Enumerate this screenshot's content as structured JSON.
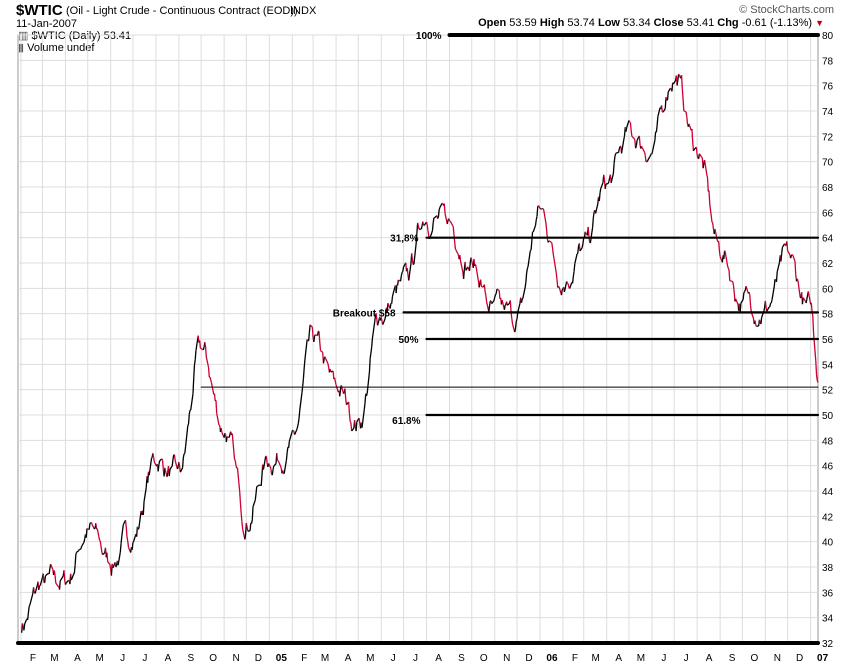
{
  "header": {
    "symbol": "$WTIC",
    "description": "(Oil - Light Crude - Continuous Contract (EOD))",
    "index": "INDX",
    "date": "11-Jan-2007",
    "brand": "© StockCharts.com",
    "ohlc": {
      "open_label": "Open",
      "open": "53.59",
      "high_label": "High",
      "high": "53.74",
      "low_label": "Low",
      "low": "53.34",
      "close_label": "Close",
      "close": "53.41",
      "chg_label": "Chg",
      "chg": "-0.61 (-1.13%)"
    },
    "legend_line1": "$WTIC (Daily) 53.41",
    "legend_line2": "Volume undef"
  },
  "colors": {
    "up": "#000000",
    "down": "#cc0033",
    "grid": "#dddddd",
    "level": "#000000"
  },
  "chart_data": {
    "type": "line",
    "title": "$WTIC (Oil - Light Crude - Continuous Contract (EOD)) INDX",
    "series": [
      {
        "name": "$WTIC (Daily) 53.41",
        "x": [
          "2004-02-01",
          "2004-03-01",
          "2004-04-01",
          "2004-05-01",
          "2004-06-01",
          "2004-07-01",
          "2004-08-01",
          "2004-09-01",
          "2004-10-01",
          "2004-11-01",
          "2004-12-01",
          "2005-01-01",
          "2005-02-01",
          "2005-03-01",
          "2005-04-01",
          "2005-05-01",
          "2005-06-01",
          "2005-07-01",
          "2005-08-01",
          "2005-09-01",
          "2005-10-01",
          "2005-11-01",
          "2005-12-01",
          "2006-01-01",
          "2006-02-01",
          "2006-03-01",
          "2006-04-01",
          "2006-05-01",
          "2006-06-01",
          "2006-07-01",
          "2006-08-01",
          "2006-09-01",
          "2006-10-01",
          "2006-11-01",
          "2006-12-01",
          "2007-01-01",
          "2007-01-11"
        ],
        "values": [
          33.5,
          36.5,
          36.8,
          41,
          38.5,
          40.5,
          46.5,
          45,
          55,
          49,
          42,
          46.5,
          47.5,
          55.5,
          52,
          49.5,
          58,
          60,
          66,
          65,
          62,
          58,
          57.5,
          66,
          61,
          63,
          68,
          72,
          71,
          77,
          71,
          63,
          59,
          58.5,
          62,
          58,
          53.41
        ]
      }
    ],
    "xlabel": "",
    "ylabel": "",
    "ylim": [
      32,
      80
    ],
    "yticks": [
      32,
      34,
      36,
      38,
      40,
      42,
      44,
      46,
      48,
      50,
      52,
      54,
      56,
      58,
      60,
      62,
      64,
      66,
      68,
      70,
      72,
      74,
      76,
      78,
      80
    ],
    "x_tick_labels": [
      {
        "x": "2004-02-01",
        "label": "F"
      },
      {
        "x": "2004-03-01",
        "label": "M"
      },
      {
        "x": "2004-04-01",
        "label": "A"
      },
      {
        "x": "2004-05-01",
        "label": "M"
      },
      {
        "x": "2004-06-01",
        "label": "J"
      },
      {
        "x": "2004-07-01",
        "label": "J"
      },
      {
        "x": "2004-08-01",
        "label": "A"
      },
      {
        "x": "2004-09-01",
        "label": "S"
      },
      {
        "x": "2004-10-01",
        "label": "O"
      },
      {
        "x": "2004-11-01",
        "label": "N"
      },
      {
        "x": "2004-12-01",
        "label": "D"
      },
      {
        "x": "2005-01-01",
        "label": "05"
      },
      {
        "x": "2005-02-01",
        "label": "F"
      },
      {
        "x": "2005-03-01",
        "label": "M"
      },
      {
        "x": "2005-04-01",
        "label": "A"
      },
      {
        "x": "2005-05-01",
        "label": "M"
      },
      {
        "x": "2005-06-01",
        "label": "J"
      },
      {
        "x": "2005-07-01",
        "label": "J"
      },
      {
        "x": "2005-08-01",
        "label": "A"
      },
      {
        "x": "2005-09-01",
        "label": "S"
      },
      {
        "x": "2005-10-01",
        "label": "O"
      },
      {
        "x": "2005-11-01",
        "label": "N"
      },
      {
        "x": "2005-12-01",
        "label": "D"
      },
      {
        "x": "2006-01-01",
        "label": "06"
      },
      {
        "x": "2006-02-01",
        "label": "F"
      },
      {
        "x": "2006-03-01",
        "label": "M"
      },
      {
        "x": "2006-04-01",
        "label": "A"
      },
      {
        "x": "2006-05-01",
        "label": "M"
      },
      {
        "x": "2006-06-01",
        "label": "J"
      },
      {
        "x": "2006-07-01",
        "label": "J"
      },
      {
        "x": "2006-08-01",
        "label": "A"
      },
      {
        "x": "2006-09-01",
        "label": "S"
      },
      {
        "x": "2006-10-01",
        "label": "O"
      },
      {
        "x": "2006-11-01",
        "label": "N"
      },
      {
        "x": "2006-12-01",
        "label": "D"
      },
      {
        "x": "2007-01-01",
        "label": "07"
      }
    ],
    "levels": [
      {
        "value": 80,
        "label": "100%",
        "from": "2005-09-01",
        "to": "2007-01-11"
      },
      {
        "value": 64,
        "label": "31,8%",
        "from": "2005-08-01",
        "to": "2007-01-11"
      },
      {
        "value": 58.1,
        "label": "Breakout $58",
        "from": "2005-07-01",
        "to": "2007-01-11"
      },
      {
        "value": 56,
        "label": "50%",
        "from": "2005-08-01",
        "to": "2007-01-11"
      },
      {
        "value": 52.2,
        "label": "",
        "from": "2004-10-01",
        "to": "2007-01-11"
      },
      {
        "value": 50,
        "label": "61.8%",
        "from": "2005-08-01",
        "to": "2007-01-11"
      },
      {
        "value": 32,
        "label": "",
        "from": "2004-01-28",
        "to": "2007-01-11"
      }
    ],
    "grid": true,
    "legend_position": "top-left"
  }
}
